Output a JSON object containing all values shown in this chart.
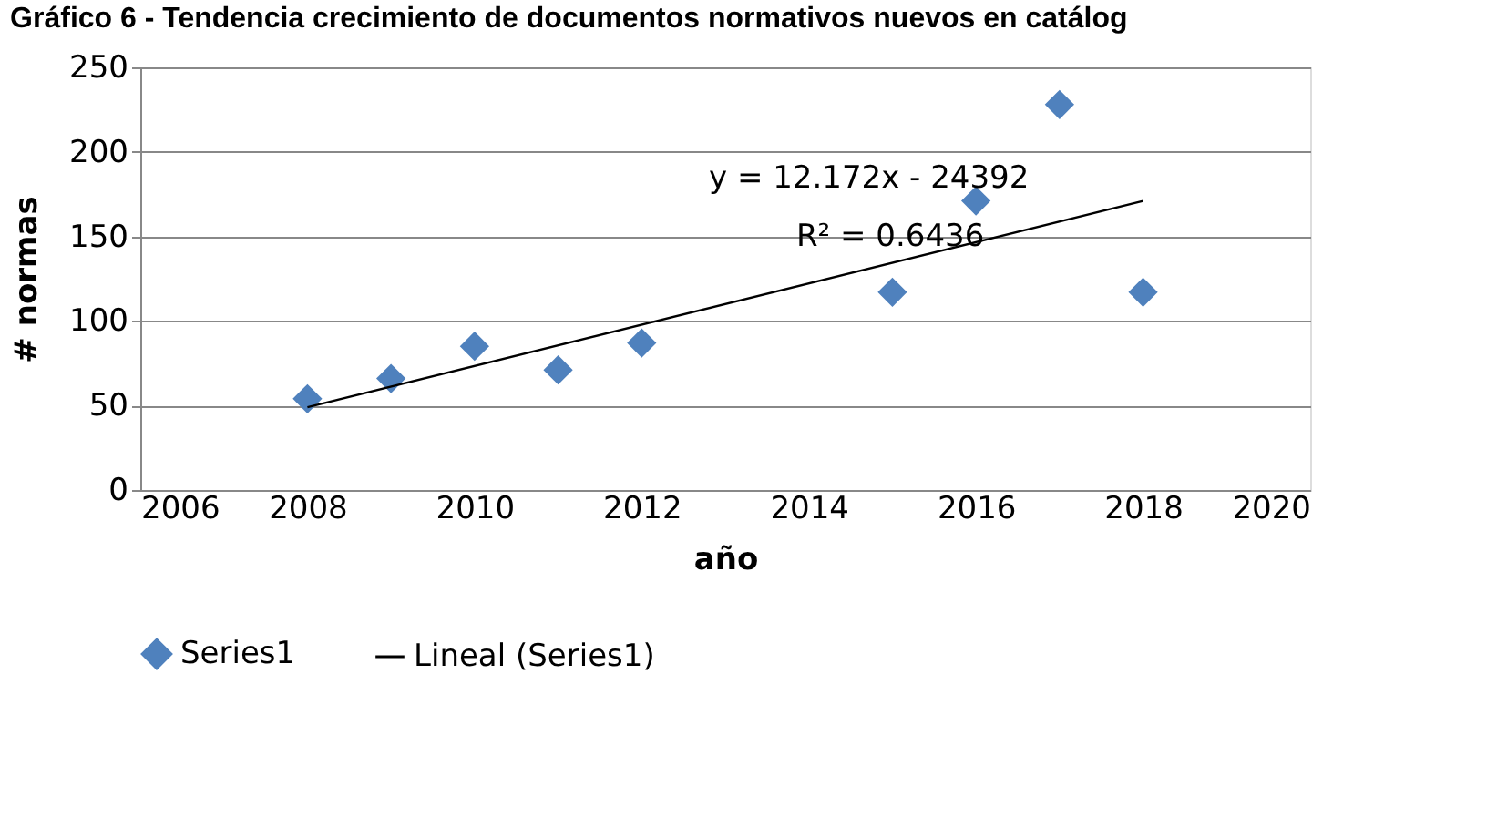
{
  "chart_data": {
    "type": "scatter",
    "title": "Gráfico 6 - Tendencia crecimiento de documentos normativos nuevos en catálog",
    "xlabel": "año",
    "ylabel": "# normas",
    "x": [
      2008,
      2009,
      2010,
      2011,
      2012,
      2015,
      2016,
      2017,
      2018
    ],
    "series": [
      {
        "name": "Series1",
        "color": "#4f81bd",
        "marker": "diamond",
        "values": [
          54,
          66,
          85,
          71,
          87,
          117,
          171,
          228,
          117
        ]
      },
      {
        "name": "Lineal (Series1)",
        "type": "line",
        "color": "#000000",
        "x": [
          2008,
          2018
        ],
        "values": [
          49,
          171
        ]
      }
    ],
    "annotations": [
      "y = 12.172x - 24392",
      "R² = 0.6436"
    ],
    "xlim": [
      2006,
      2020
    ],
    "xticks": [
      2006,
      2008,
      2010,
      2012,
      2014,
      2016,
      2018,
      2020
    ],
    "ylim": [
      0,
      250
    ],
    "yticks": [
      0,
      50,
      100,
      150,
      200,
      250
    ],
    "grid": "y",
    "legend": "bottom"
  }
}
